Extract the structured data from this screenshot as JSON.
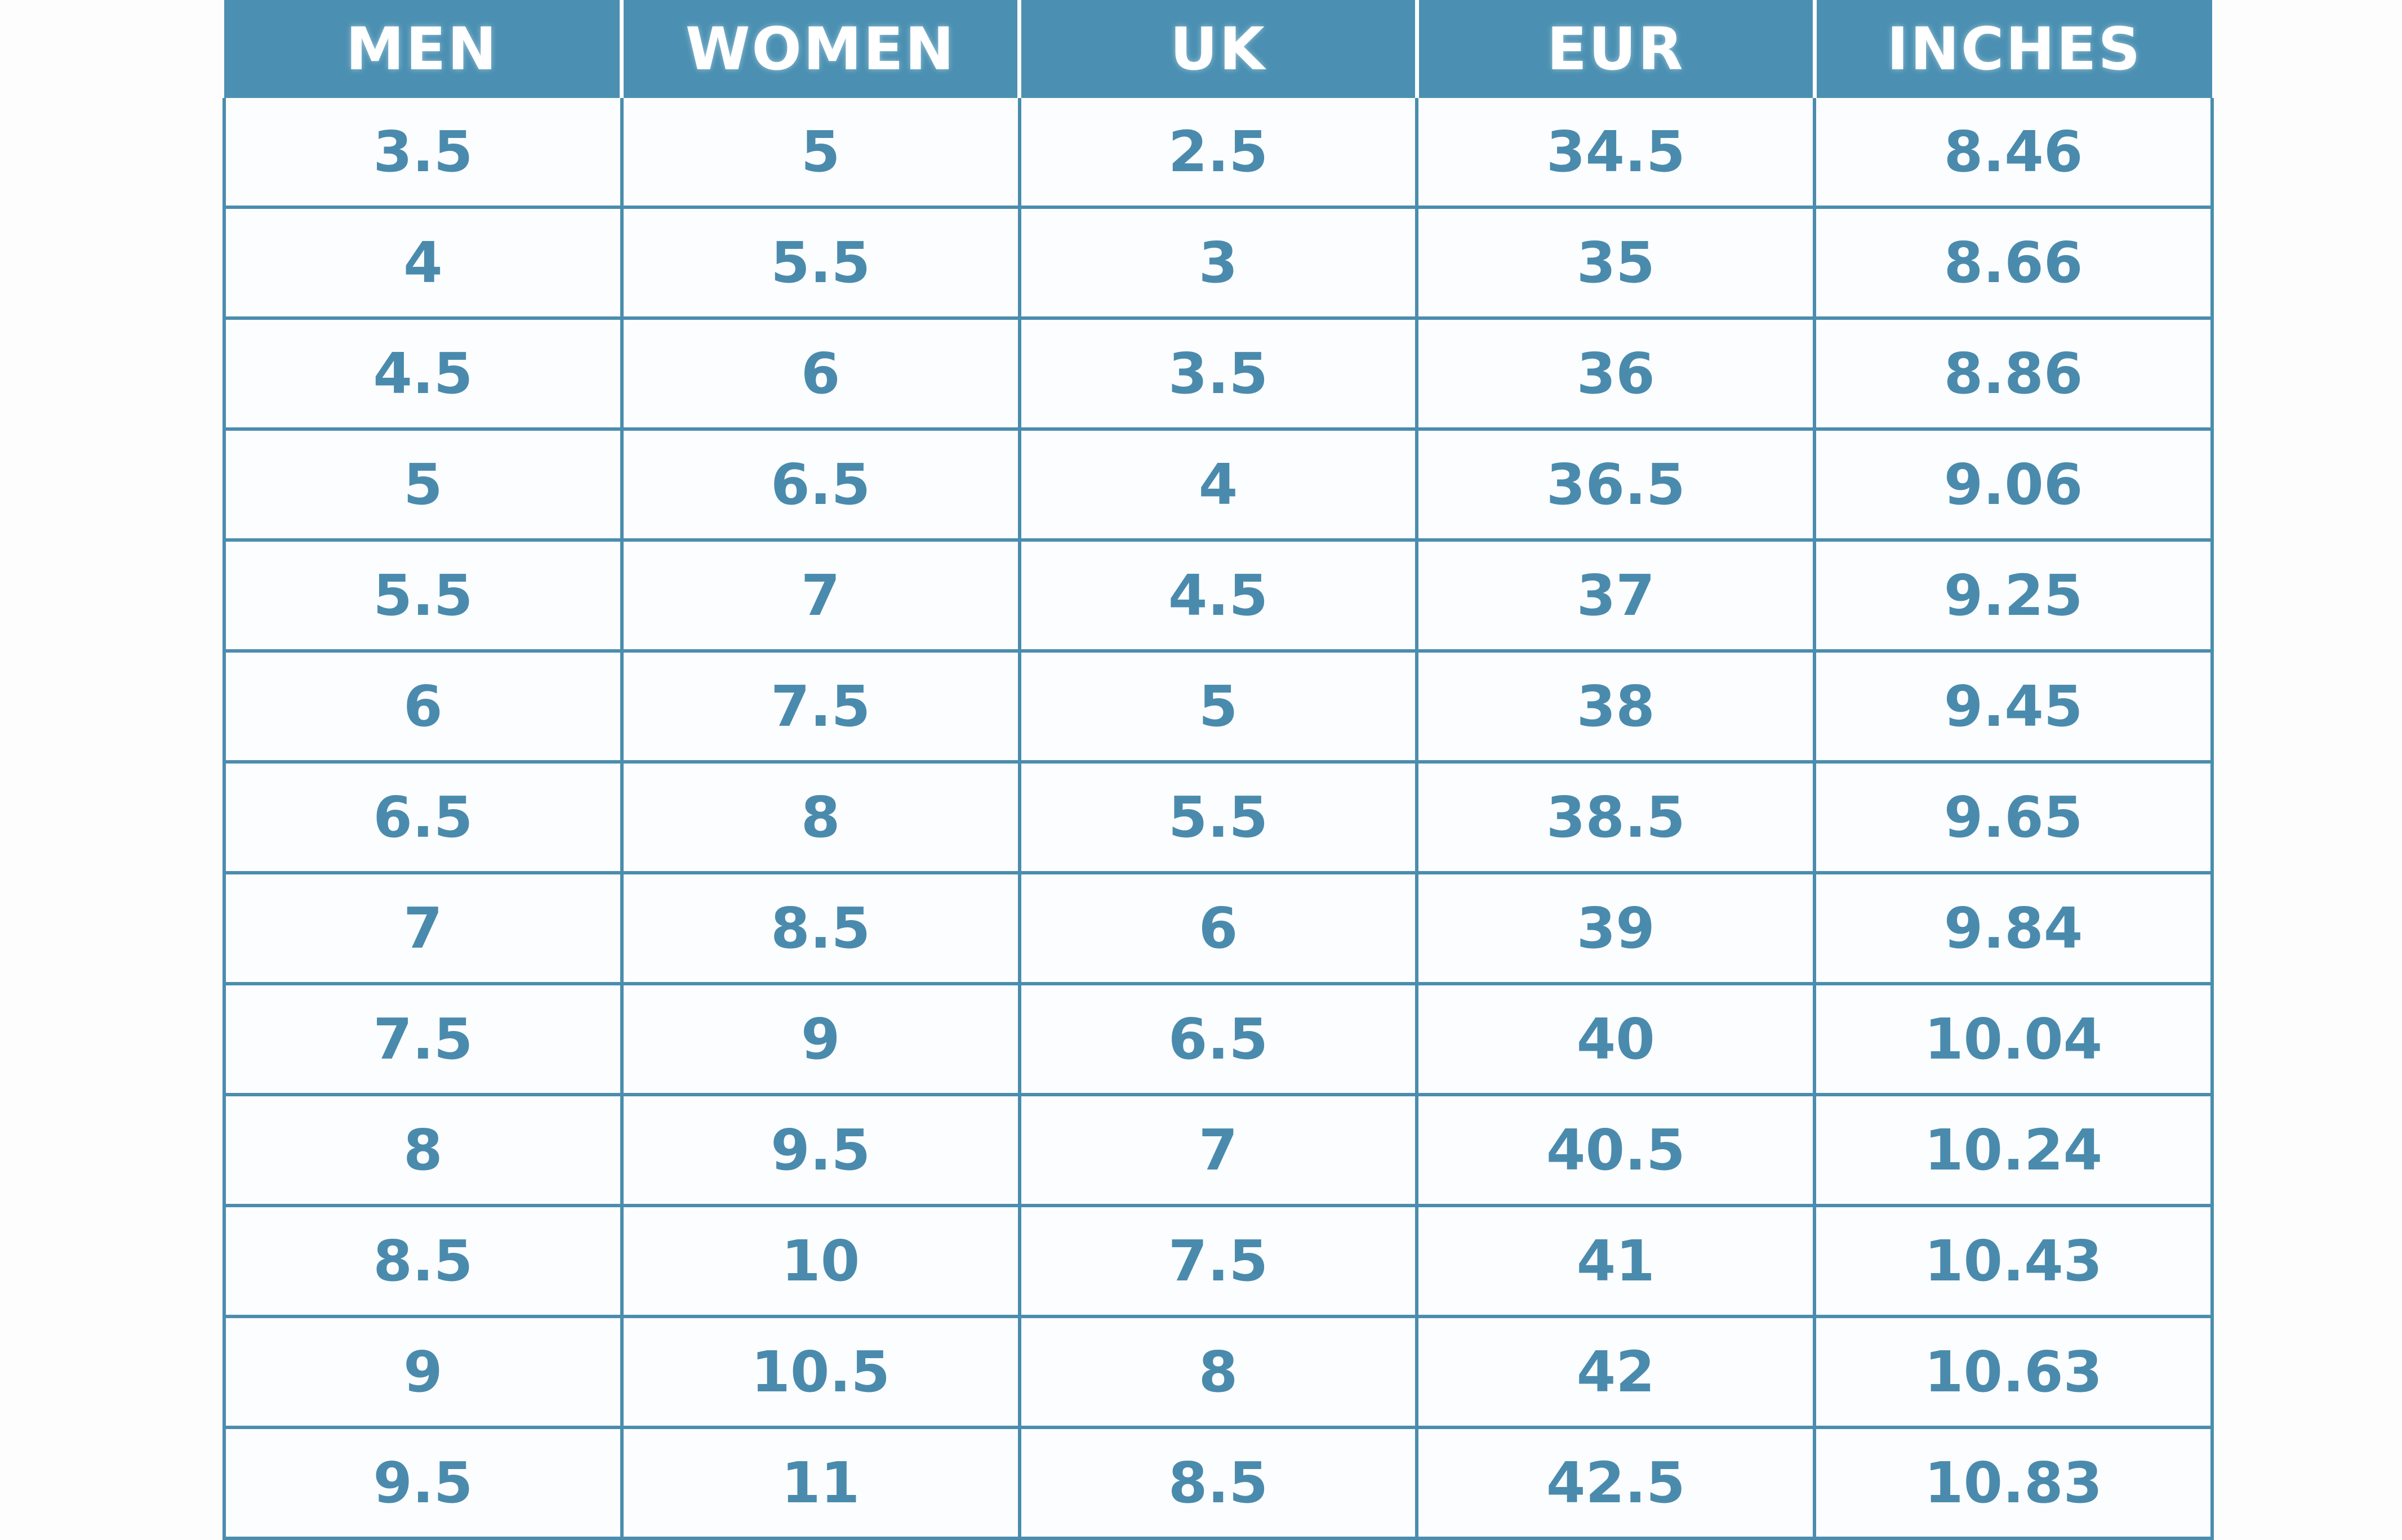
{
  "chart_data": {
    "type": "table",
    "columns": [
      "MEN",
      "WOMEN",
      "UK",
      "EUR",
      "INCHES"
    ],
    "rows": [
      [
        "3.5",
        "5",
        "2.5",
        "34.5",
        "8.46"
      ],
      [
        "4",
        "5.5",
        "3",
        "35",
        "8.66"
      ],
      [
        "4.5",
        "6",
        "3.5",
        "36",
        "8.86"
      ],
      [
        "5",
        "6.5",
        "4",
        "36.5",
        "9.06"
      ],
      [
        "5.5",
        "7",
        "4.5",
        "37",
        "9.25"
      ],
      [
        "6",
        "7.5",
        "5",
        "38",
        "9.45"
      ],
      [
        "6.5",
        "8",
        "5.5",
        "38.5",
        "9.65"
      ],
      [
        "7",
        "8.5",
        "6",
        "39",
        "9.84"
      ],
      [
        "7.5",
        "9",
        "6.5",
        "40",
        "10.04"
      ],
      [
        "8",
        "9.5",
        "7",
        "40.5",
        "10.24"
      ],
      [
        "8.5",
        "10",
        "7.5",
        "41",
        "10.43"
      ],
      [
        "9",
        "10.5",
        "8",
        "42",
        "10.63"
      ],
      [
        "9.5",
        "11",
        "8.5",
        "42.5",
        "10.83"
      ]
    ],
    "layout": {
      "grid": true,
      "header_position": "top"
    }
  },
  "colors": {
    "page-bg": "#fdfdfd",
    "header-bg": "#4B90B2",
    "header-text": "#ffffff",
    "cell-bg": "#fcfdfe",
    "cell-text": "#4A8BAD",
    "border": "#4A8DAE"
  }
}
